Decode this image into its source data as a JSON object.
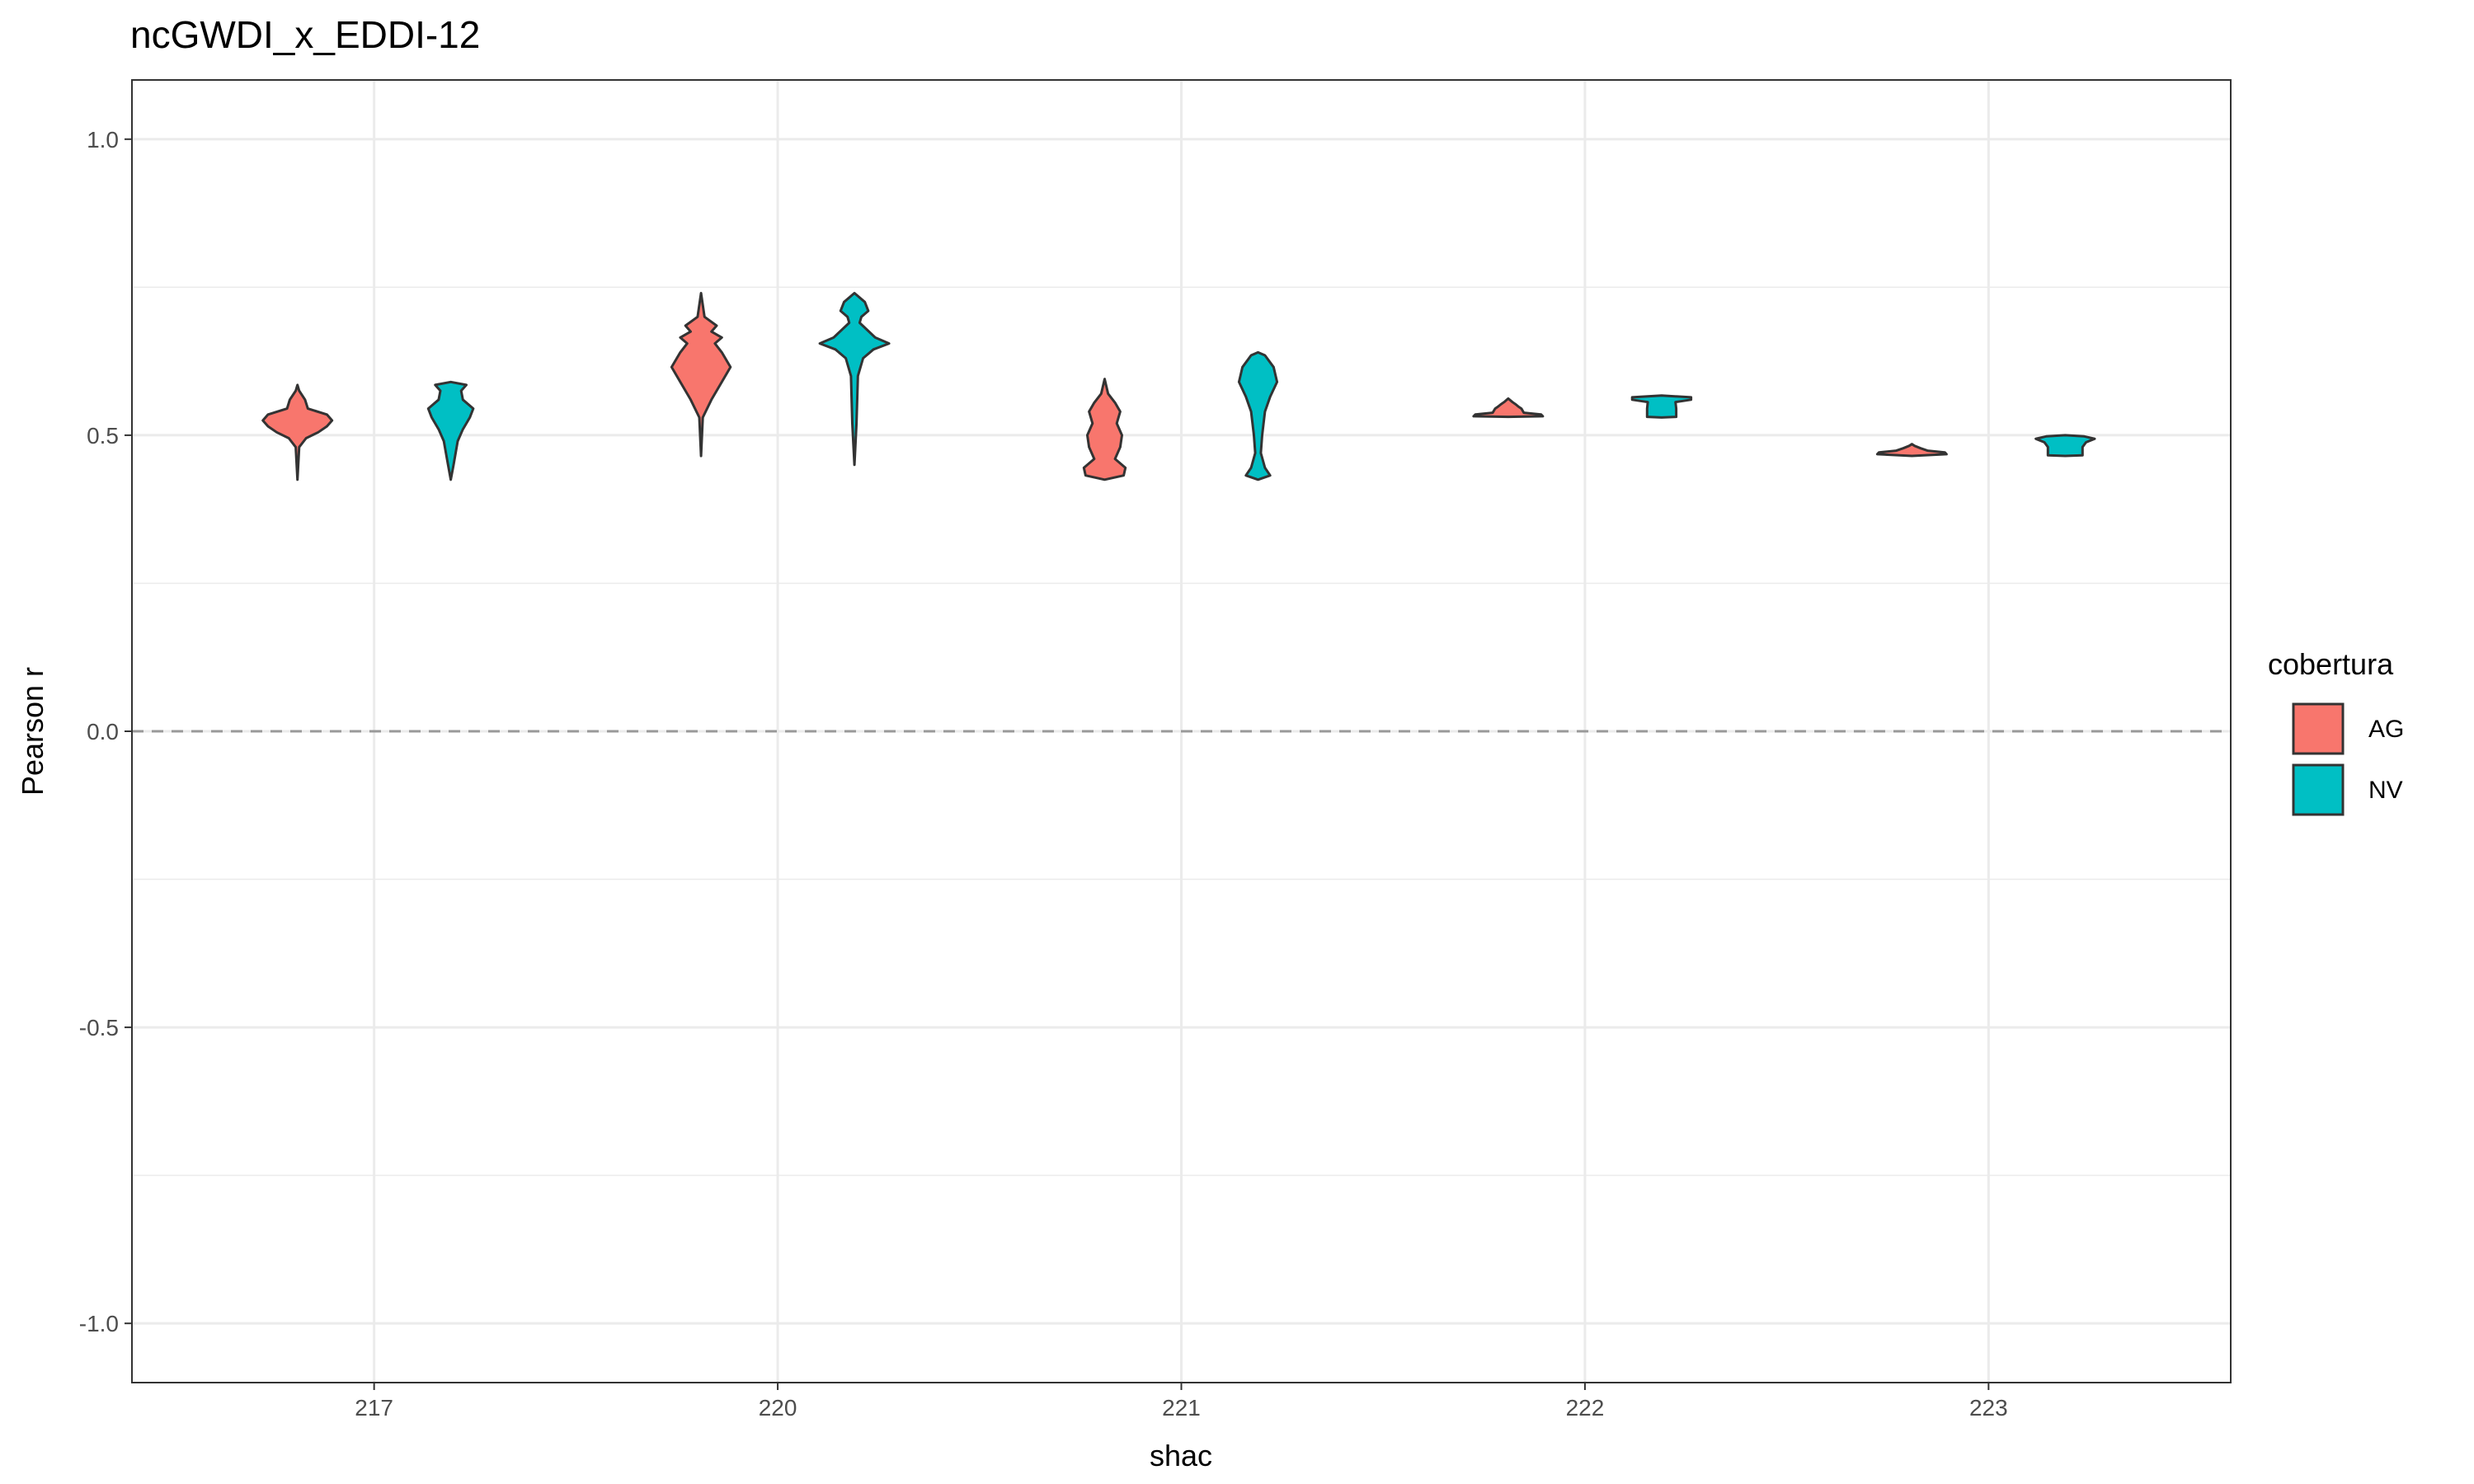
{
  "chart_data": {
    "type": "violin",
    "title": "ncGWDI_x_EDDI-12",
    "xlabel": "shac",
    "ylabel": "Pearson r",
    "categories": [
      "217",
      "220",
      "221",
      "222",
      "223"
    ],
    "ylim": [
      -1.1,
      1.1
    ],
    "y_ticks": [
      -1.0,
      -0.5,
      0.0,
      0.5,
      1.0
    ],
    "y_tick_labels": [
      "-1.0",
      "-0.5",
      "0.0",
      "0.5",
      "1.0"
    ],
    "reference_line": {
      "y": 0.0,
      "style": "dashed",
      "color": "#999999"
    },
    "grid": true,
    "legend": {
      "title": "cobertura",
      "position": "right",
      "entries": [
        {
          "name": "AG",
          "color": "#F8766D"
        },
        {
          "name": "NV",
          "color": "#00BFC4"
        }
      ]
    },
    "series": [
      {
        "name": "AG",
        "color": "#F8766D",
        "violins": [
          {
            "category": "217",
            "min": 0.425,
            "max": 0.585,
            "profile": [
              [
                0.425,
                0.0
              ],
              [
                0.48,
                0.05
              ],
              [
                0.495,
                0.25
              ],
              [
                0.505,
                0.6
              ],
              [
                0.515,
                0.85
              ],
              [
                0.525,
                1.0
              ],
              [
                0.535,
                0.85
              ],
              [
                0.545,
                0.3
              ],
              [
                0.56,
                0.22
              ],
              [
                0.575,
                0.05
              ],
              [
                0.585,
                0.0
              ]
            ]
          },
          {
            "category": "220",
            "min": 0.465,
            "max": 0.74,
            "profile": [
              [
                0.465,
                0.0
              ],
              [
                0.53,
                0.05
              ],
              [
                0.56,
                0.3
              ],
              [
                0.59,
                0.6
              ],
              [
                0.615,
                0.85
              ],
              [
                0.64,
                0.6
              ],
              [
                0.655,
                0.4
              ],
              [
                0.665,
                0.6
              ],
              [
                0.675,
                0.3
              ],
              [
                0.685,
                0.45
              ],
              [
                0.7,
                0.1
              ],
              [
                0.74,
                0.0
              ]
            ]
          },
          {
            "category": "221",
            "min": 0.425,
            "max": 0.595,
            "profile": [
              [
                0.425,
                0.0
              ],
              [
                0.432,
                0.55
              ],
              [
                0.445,
                0.6
              ],
              [
                0.46,
                0.3
              ],
              [
                0.48,
                0.45
              ],
              [
                0.5,
                0.5
              ],
              [
                0.52,
                0.35
              ],
              [
                0.54,
                0.45
              ],
              [
                0.555,
                0.3
              ],
              [
                0.57,
                0.1
              ],
              [
                0.595,
                0.0
              ]
            ]
          },
          {
            "category": "222",
            "min": 0.531,
            "max": 0.562,
            "profile": [
              [
                0.531,
                0.0
              ],
              [
                0.532,
                1.0
              ],
              [
                0.535,
                0.95
              ],
              [
                0.538,
                0.45
              ],
              [
                0.545,
                0.38
              ],
              [
                0.548,
                0.3
              ],
              [
                0.552,
                0.22
              ],
              [
                0.556,
                0.12
              ],
              [
                0.562,
                0.0
              ]
            ]
          },
          {
            "category": "223",
            "min": 0.465,
            "max": 0.485,
            "profile": [
              [
                0.465,
                0.0
              ],
              [
                0.468,
                1.0
              ],
              [
                0.471,
                0.95
              ],
              [
                0.474,
                0.45
              ],
              [
                0.478,
                0.25
              ],
              [
                0.482,
                0.08
              ],
              [
                0.485,
                0.0
              ]
            ]
          }
        ]
      },
      {
        "name": "NV",
        "color": "#00BFC4",
        "violins": [
          {
            "category": "217",
            "min": 0.425,
            "max": 0.59,
            "profile": [
              [
                0.425,
                0.0
              ],
              [
                0.45,
                0.08
              ],
              [
                0.49,
                0.2
              ],
              [
                0.51,
                0.35
              ],
              [
                0.53,
                0.55
              ],
              [
                0.545,
                0.65
              ],
              [
                0.56,
                0.35
              ],
              [
                0.575,
                0.3
              ],
              [
                0.585,
                0.45
              ],
              [
                0.59,
                0.0
              ]
            ]
          },
          {
            "category": "220",
            "min": 0.45,
            "max": 0.74,
            "profile": [
              [
                0.45,
                0.0
              ],
              [
                0.52,
                0.06
              ],
              [
                0.6,
                0.1
              ],
              [
                0.63,
                0.25
              ],
              [
                0.645,
                0.55
              ],
              [
                0.655,
                1.0
              ],
              [
                0.665,
                0.6
              ],
              [
                0.69,
                0.15
              ],
              [
                0.7,
                0.2
              ],
              [
                0.71,
                0.4
              ],
              [
                0.725,
                0.3
              ],
              [
                0.74,
                0.0
              ]
            ]
          },
          {
            "category": "221",
            "min": 0.425,
            "max": 0.64,
            "profile": [
              [
                0.425,
                0.0
              ],
              [
                0.432,
                0.35
              ],
              [
                0.445,
                0.2
              ],
              [
                0.47,
                0.08
              ],
              [
                0.5,
                0.12
              ],
              [
                0.54,
                0.2
              ],
              [
                0.565,
                0.35
              ],
              [
                0.59,
                0.55
              ],
              [
                0.615,
                0.45
              ],
              [
                0.635,
                0.2
              ],
              [
                0.64,
                0.0
              ]
            ]
          },
          {
            "category": "222",
            "min": 0.53,
            "max": 0.567,
            "profile": [
              [
                0.53,
                0.0
              ],
              [
                0.531,
                0.42
              ],
              [
                0.545,
                0.42
              ],
              [
                0.556,
                0.4
              ],
              [
                0.56,
                0.85
              ],
              [
                0.564,
                0.85
              ],
              [
                0.567,
                0.0
              ]
            ]
          },
          {
            "category": "223",
            "min": 0.465,
            "max": 0.5,
            "profile": [
              [
                0.465,
                0.0
              ],
              [
                0.466,
                0.5
              ],
              [
                0.48,
                0.5
              ],
              [
                0.488,
                0.6
              ],
              [
                0.494,
                0.85
              ],
              [
                0.498,
                0.55
              ],
              [
                0.5,
                0.0
              ]
            ]
          }
        ]
      }
    ]
  }
}
